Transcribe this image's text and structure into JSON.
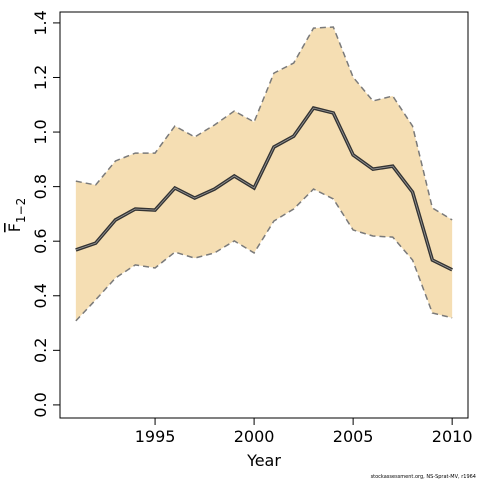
{
  "chart_data": {
    "type": "line",
    "x": [
      1991,
      1992,
      1993,
      1994,
      1995,
      1996,
      1997,
      1998,
      1999,
      2000,
      2001,
      2002,
      2003,
      2004,
      2005,
      2006,
      2007,
      2008,
      2009,
      2010
    ],
    "values": [
      0.568,
      0.593,
      0.678,
      0.718,
      0.714,
      0.795,
      0.758,
      0.791,
      0.839,
      0.795,
      0.945,
      0.985,
      1.088,
      1.07,
      0.916,
      0.864,
      0.875,
      0.78,
      0.531,
      0.495
    ],
    "upper": [
      0.82,
      0.806,
      0.894,
      0.923,
      0.923,
      1.022,
      0.982,
      1.026,
      1.077,
      1.037,
      1.216,
      1.253,
      1.381,
      1.385,
      1.201,
      1.114,
      1.132,
      1.022,
      0.722,
      0.678
    ],
    "lower": [
      0.308,
      0.385,
      0.465,
      0.513,
      0.502,
      0.56,
      0.538,
      0.557,
      0.601,
      0.557,
      0.674,
      0.718,
      0.791,
      0.755,
      0.641,
      0.619,
      0.615,
      0.531,
      0.337,
      0.319
    ],
    "color": "#333333",
    "band_color": "#f5deb3",
    "band_line_color": "#7a7a7a",
    "xlabel": "Year",
    "ylabel": {
      "text": "F",
      "subscript": "1−2"
    },
    "xlim": [
      1990.2,
      2010.8
    ],
    "ylim": [
      -0.048,
      1.44
    ],
    "xticks": [
      1995,
      2000,
      2005,
      2010
    ],
    "yticks": [
      {
        "value": 0,
        "label": "0.0"
      },
      0.2,
      0.4,
      0.6,
      0.8,
      {
        "value": 1,
        "label": "1.0"
      },
      1.2,
      1.4
    ],
    "footer": "stockassessment.org, NS-Sprat-MV, r1964"
  }
}
